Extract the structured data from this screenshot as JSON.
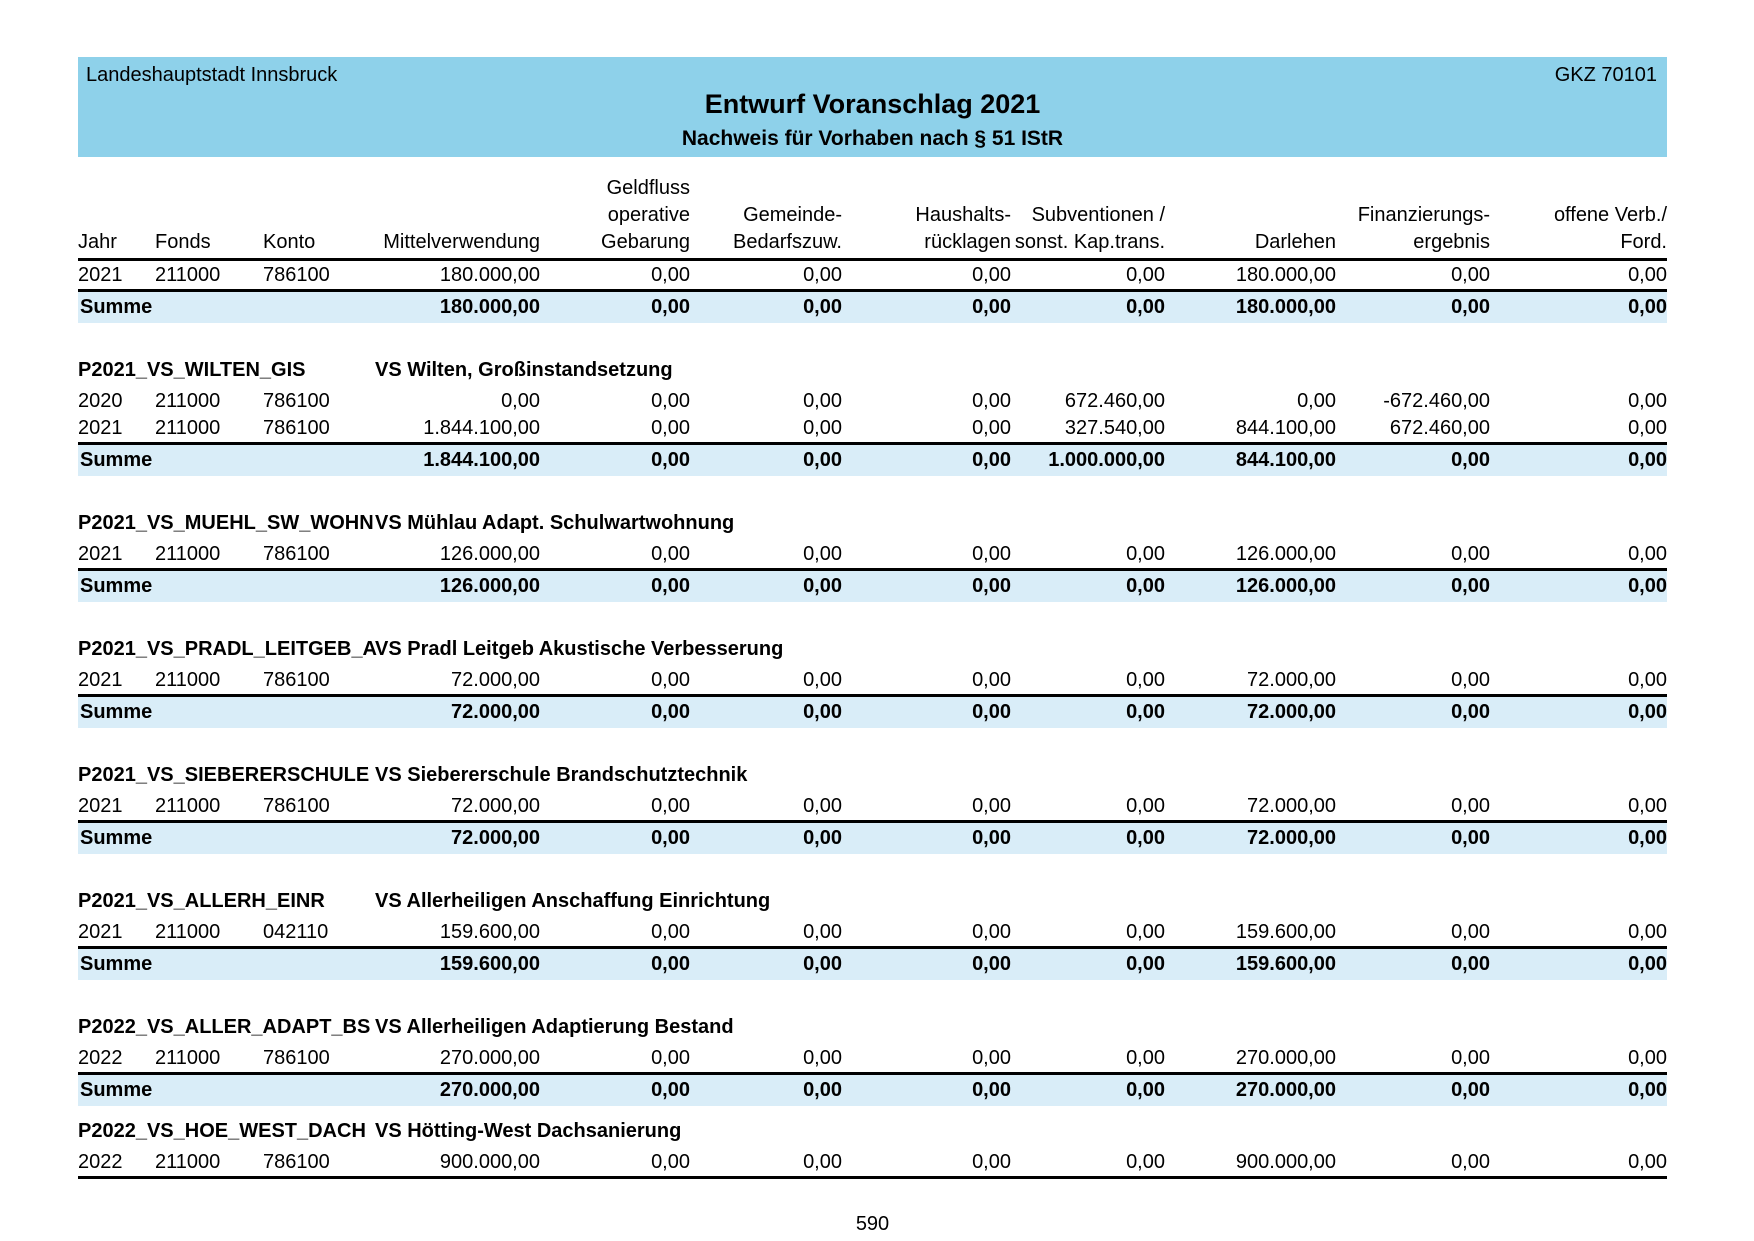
{
  "page": {
    "org": "Landeshauptstadt Innsbruck",
    "gkz": "GKZ 70101",
    "title": "Entwurf Voranschlag 2021",
    "subtitle": "Nachweis für Vorhaben nach § 51 IStR",
    "page_number": "590"
  },
  "colors": {
    "band_blue": "#8ed1ea",
    "summe_row_blue": "#d9edf8"
  },
  "table": {
    "summe_label": "Summe",
    "columns": [
      {
        "label": "Jahr"
      },
      {
        "label": "Fonds"
      },
      {
        "label": "Konto"
      },
      {
        "label": "Mittelverwendung"
      },
      {
        "label": "Geldfluss\noperative\nGebarung"
      },
      {
        "label": "Gemeinde-\nBedarfszuw."
      },
      {
        "label": "Haushalts-\nrücklagen"
      },
      {
        "label": "Subventionen /\nsonst. Kap.trans."
      },
      {
        "label": "Darlehen"
      },
      {
        "label": "Finanzierungs-\nergebnis"
      },
      {
        "label": "offene Verb./\nFord."
      }
    ],
    "blocks": [
      {
        "code": "",
        "desc": "",
        "rows": [
          [
            "2021",
            "211000",
            "786100",
            "180.000,00",
            "0,00",
            "0,00",
            "0,00",
            "0,00",
            "180.000,00",
            "0,00",
            "0,00"
          ]
        ],
        "summe": [
          "180.000,00",
          "0,00",
          "0,00",
          "0,00",
          "0,00",
          "180.000,00",
          "0,00",
          "0,00"
        ]
      },
      {
        "code": "P2021_VS_WILTEN_GIS",
        "desc": "VS Wilten, Großinstandsetzung",
        "rows": [
          [
            "2020",
            "211000",
            "786100",
            "0,00",
            "0,00",
            "0,00",
            "0,00",
            "672.460,00",
            "0,00",
            "-672.460,00",
            "0,00"
          ],
          [
            "2021",
            "211000",
            "786100",
            "1.844.100,00",
            "0,00",
            "0,00",
            "0,00",
            "327.540,00",
            "844.100,00",
            "672.460,00",
            "0,00"
          ]
        ],
        "summe": [
          "1.844.100,00",
          "0,00",
          "0,00",
          "0,00",
          "1.000.000,00",
          "844.100,00",
          "0,00",
          "0,00"
        ]
      },
      {
        "code": "P2021_VS_MUEHL_SW_WOHN",
        "desc": "VS Mühlau Adapt. Schulwartwohnung",
        "rows": [
          [
            "2021",
            "211000",
            "786100",
            "126.000,00",
            "0,00",
            "0,00",
            "0,00",
            "0,00",
            "126.000,00",
            "0,00",
            "0,00"
          ]
        ],
        "summe": [
          "126.000,00",
          "0,00",
          "0,00",
          "0,00",
          "0,00",
          "126.000,00",
          "0,00",
          "0,00"
        ]
      },
      {
        "code": "P2021_VS_PRADL_LEITGEB_A",
        "desc": "VS Pradl Leitgeb Akustische Verbesserung",
        "rows": [
          [
            "2021",
            "211000",
            "786100",
            "72.000,00",
            "0,00",
            "0,00",
            "0,00",
            "0,00",
            "72.000,00",
            "0,00",
            "0,00"
          ]
        ],
        "summe": [
          "72.000,00",
          "0,00",
          "0,00",
          "0,00",
          "0,00",
          "72.000,00",
          "0,00",
          "0,00"
        ]
      },
      {
        "code": "P2021_VS_SIEBERERSCHULE",
        "desc": "VS Siebererschule Brandschutztechnik",
        "rows": [
          [
            "2021",
            "211000",
            "786100",
            "72.000,00",
            "0,00",
            "0,00",
            "0,00",
            "0,00",
            "72.000,00",
            "0,00",
            "0,00"
          ]
        ],
        "summe": [
          "72.000,00",
          "0,00",
          "0,00",
          "0,00",
          "0,00",
          "72.000,00",
          "0,00",
          "0,00"
        ]
      },
      {
        "code": "P2021_VS_ALLERH_EINR",
        "desc": "VS Allerheiligen Anschaffung Einrichtung",
        "rows": [
          [
            "2021",
            "211000",
            "042110",
            "159.600,00",
            "0,00",
            "0,00",
            "0,00",
            "0,00",
            "159.600,00",
            "0,00",
            "0,00"
          ]
        ],
        "summe": [
          "159.600,00",
          "0,00",
          "0,00",
          "0,00",
          "0,00",
          "159.600,00",
          "0,00",
          "0,00"
        ]
      },
      {
        "code": "P2022_VS_ALLER_ADAPT_BS",
        "desc": "VS Allerheiligen Adaptierung Bestand",
        "tight_gap": true,
        "rows": [
          [
            "2022",
            "211000",
            "786100",
            "270.000,00",
            "0,00",
            "0,00",
            "0,00",
            "0,00",
            "270.000,00",
            "0,00",
            "0,00"
          ]
        ],
        "summe": [
          "270.000,00",
          "0,00",
          "0,00",
          "0,00",
          "0,00",
          "270.000,00",
          "0,00",
          "0,00"
        ]
      },
      {
        "code": "P2022_VS_HOE_WEST_DACH",
        "desc": "VS Hötting-West Dachsanierung",
        "rows": [
          [
            "2022",
            "211000",
            "786100",
            "900.000,00",
            "0,00",
            "0,00",
            "0,00",
            "0,00",
            "900.000,00",
            "0,00",
            "0,00"
          ]
        ],
        "summe": null
      }
    ]
  }
}
